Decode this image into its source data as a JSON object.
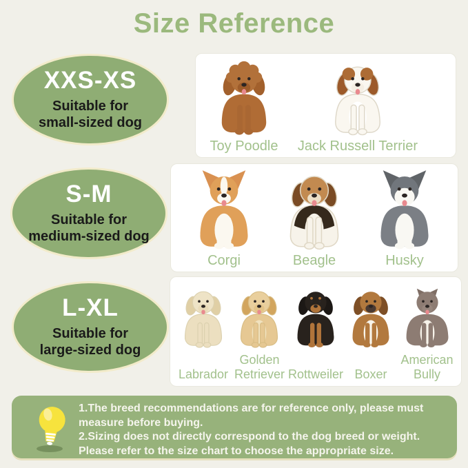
{
  "title": "Size Reference",
  "palette": {
    "background": "#f1f0e9",
    "title_green": "#9bb97d",
    "badge_green": "#8fad74",
    "badge_border_cream": "#f2ebca",
    "badge_text_dark": "#1a1a1a",
    "breed_label_green": "#a2c18c",
    "footer_green": "#97b27b",
    "footer_text": "#f5f5ec",
    "bulb_yellow": "#f7e33d"
  },
  "rows": [
    {
      "size": "XXS-XS",
      "suitable": [
        "Suitable for",
        "small-sized dog"
      ],
      "breeds": [
        {
          "label": "Toy Poodle"
        },
        {
          "label": "Jack Russell Terrier"
        }
      ]
    },
    {
      "size": "S-M",
      "suitable": [
        "Suitable for",
        "medium-sized dog"
      ],
      "breeds": [
        {
          "label": "Corgi"
        },
        {
          "label": "Beagle"
        },
        {
          "label": "Husky"
        }
      ]
    },
    {
      "size": "L-XL",
      "suitable": [
        "Suitable for",
        "large-sized dog"
      ],
      "breeds": [
        {
          "label": "Labrador"
        },
        {
          "label": "Golden Retriever"
        },
        {
          "label": "Rottweiler"
        },
        {
          "label": "Boxer"
        },
        {
          "label": "American Bully"
        }
      ]
    }
  ],
  "footer": {
    "icon": "lightbulb-icon",
    "lines": [
      "1.The breed recommendations are for reference only, please must",
      "measure before buying.",
      "2.Sizing does not directly correspond to the dog breed or weight.",
      "Please refer to the size chart to choose the appropriate size."
    ]
  },
  "art": {
    "toy_poodle": {
      "earType": "floppy",
      "ear": "#a2602c",
      "body": "#b06c35",
      "head": "#b2713a",
      "chest": "#b06c35",
      "legs": "#a96733",
      "muzzle": "#9d5c2a",
      "fluff": true,
      "tongue": true
    },
    "jack_russell": {
      "earType": "floppy",
      "ear": "#9c5a2a",
      "body": "#faf7f0",
      "head": "#faf7f0",
      "patches": "#ad6c35",
      "chest": "#ffffff",
      "legs": "#faf7f0",
      "muzzle": "#f5efe4",
      "stroke": "#ded8c9",
      "tongue": true
    },
    "corgi": {
      "earType": "up",
      "ear": "#d99151",
      "body": "#e0a059",
      "head": "#e0a059",
      "chest": "#fbf8f0",
      "legs": "#fbf8f0",
      "muzzle": "#fbf8f0",
      "blaze": "#fbf8f0",
      "tongue": true
    },
    "beagle": {
      "earType": "floppy",
      "ear": "#7a4b24",
      "body": "#f7f3ea",
      "saddle": "#35291c",
      "head": "#c28a50",
      "chest": "#f7f3ea",
      "legs": "#f7f3ea",
      "muzzle": "#ecdfc6",
      "stroke": "#e0d8c6",
      "tongue": true
    },
    "husky": {
      "earType": "up",
      "ear": "#606468",
      "body": "#7b7f85",
      "head": "#71767c",
      "mask": "#f9f8f3",
      "chest": "#f9f8f3",
      "legs": "#f9f8f3",
      "muzzle": "#f9f8f3",
      "tongue": true
    },
    "labrador": {
      "earType": "floppy",
      "ear": "#e0cfa5",
      "body": "#ecdfc0",
      "head": "#eee3c6",
      "chest": "#ecdfc0",
      "legs": "#ecdfc0",
      "muzzle": "#e9dbb8",
      "stroke": "#dcd1af",
      "tongue": true
    },
    "golden": {
      "earType": "floppy",
      "ear": "#d2a55e",
      "body": "#e6c893",
      "head": "#e9cf9d",
      "chest": "#f1e2bf",
      "legs": "#e6c893",
      "muzzle": "#e3c388",
      "stroke": "#d8bd85",
      "tongue": true
    },
    "rottweiler": {
      "earType": "floppy",
      "ear": "#1c1815",
      "body": "#28221d",
      "head": "#28221d",
      "chest": "#28221d",
      "legs": "#b0743a",
      "muzzle": "#b0743a",
      "brows": "#b0743a"
    },
    "boxer": {
      "earType": "floppy",
      "ear": "#7e4f26",
      "body": "#b2793e",
      "head": "#b2793e",
      "chest": "#f8f4ea",
      "legs": "#b2793e",
      "muzzle": "#4a3a32"
    },
    "bully": {
      "earType": "crop",
      "ear": "#7f6e65",
      "body": "#8d7c73",
      "head": "#8d7c73",
      "chest": "#f7f3ea",
      "legs": "#8d7c73",
      "muzzle": "#97867d",
      "wide": true,
      "tongue": true
    }
  }
}
